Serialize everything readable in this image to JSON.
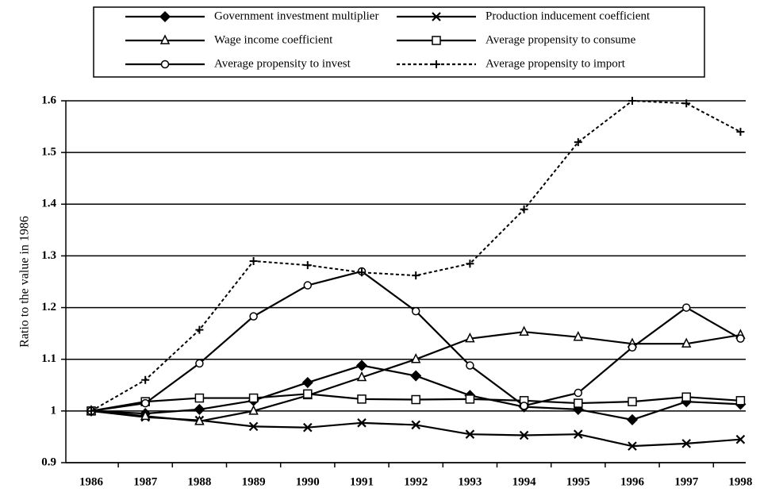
{
  "chart_data": {
    "type": "line",
    "y_label": "Ratio to the value in 1986",
    "categories": [
      "1986",
      "1987",
      "1988",
      "1989",
      "1990",
      "1991",
      "1992",
      "1993",
      "1994",
      "1995",
      "1996",
      "1997",
      "1998"
    ],
    "ylim": [
      0.9,
      1.6
    ],
    "yticks": [
      0.9,
      1,
      1.1,
      1.2,
      1.3,
      1.4,
      1.5,
      1.6
    ],
    "grid": true,
    "series": [
      {
        "name": "Government investment multiplier",
        "color": "#000000",
        "marker": "diamond",
        "dashed": false,
        "values": [
          1.0,
          0.995,
          1.003,
          1.02,
          1.055,
          1.088,
          1.068,
          1.03,
          1.008,
          1.003,
          0.983,
          1.018,
          1.013
        ]
      },
      {
        "name": "Production inducement coefficient",
        "color": "#000000",
        "marker": "x",
        "dashed": false,
        "values": [
          1.0,
          0.988,
          0.982,
          0.97,
          0.968,
          0.977,
          0.973,
          0.955,
          0.953,
          0.955,
          0.932,
          0.937,
          0.945
        ]
      },
      {
        "name": "Wage income coefficient",
        "color": "#000000",
        "marker": "triangle",
        "dashed": false,
        "values": [
          1.0,
          0.99,
          0.98,
          1.0,
          1.03,
          1.065,
          1.1,
          1.14,
          1.153,
          1.143,
          1.13,
          1.13,
          1.147
        ]
      },
      {
        "name": "Average propensity to consume",
        "color": "#000000",
        "marker": "square",
        "dashed": false,
        "values": [
          1.0,
          1.018,
          1.025,
          1.025,
          1.033,
          1.023,
          1.022,
          1.023,
          1.02,
          1.015,
          1.018,
          1.027,
          1.02
        ]
      },
      {
        "name": "Average propensity to invest",
        "color": "#000000",
        "marker": "circle",
        "dashed": false,
        "values": [
          1.0,
          1.015,
          1.092,
          1.183,
          1.243,
          1.27,
          1.193,
          1.088,
          1.01,
          1.035,
          1.123,
          1.2,
          1.14
        ]
      },
      {
        "name": "Average propensity to import",
        "color": "#000000",
        "marker": "plus",
        "dashed": true,
        "values": [
          1.0,
          1.06,
          1.157,
          1.29,
          1.282,
          1.268,
          1.262,
          1.285,
          1.39,
          1.52,
          1.6,
          1.595,
          1.54
        ]
      }
    ]
  }
}
